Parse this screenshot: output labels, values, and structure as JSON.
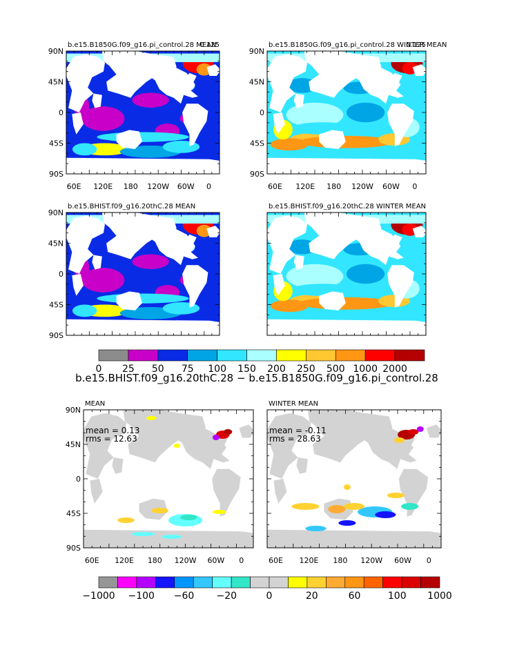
{
  "chart_data": {
    "type": "heatmap",
    "colors": {
      "land": "#ffffff",
      "land_diff": "#d3d3d3",
      "frame": "#000000"
    },
    "panels": [
      {
        "id": "p1",
        "title": "b.e15.B1850G.f09_g16.pi_control.28 MEAN",
        "corner_value": "0.125",
        "yticks": [
          "90N",
          "45N",
          "0",
          "45S",
          "90S"
        ],
        "xticks": [
          "60E",
          "120E",
          "180",
          "120W",
          "60W",
          "0"
        ],
        "dominant_class": 2
      },
      {
        "id": "p2",
        "title": "b.e15.B1850G.f09_g16.pi_control.28 WINTER MEAN",
        "corner_value": "0.125",
        "yticks": [
          "90N",
          "45N",
          "0",
          "45S",
          "90S"
        ],
        "xticks": [
          "60E",
          "120E",
          "180",
          "120W",
          "60W",
          "0"
        ],
        "dominant_class": 4
      },
      {
        "id": "p3",
        "title": "b.e15.BHIST.f09_g16.20thC.28 MEAN",
        "yticks": [
          "90N",
          "45N",
          "0",
          "45S",
          "90S"
        ],
        "xticks": [],
        "dominant_class": 2
      },
      {
        "id": "p4",
        "title": "b.e15.BHIST.f09_g16.20thC.28 WINTER MEAN",
        "yticks": [],
        "xticks": [],
        "dominant_class": 4
      },
      {
        "id": "p5",
        "title": "MEAN",
        "stats": [
          "mean = 0.13",
          "rms = 12.63"
        ],
        "yticks": [
          "90N",
          "45N",
          "0",
          "45S",
          "90S"
        ],
        "xticks": [
          "60E",
          "120E",
          "180",
          "120W",
          "60W",
          "0"
        ]
      },
      {
        "id": "p6",
        "title": "WINTER MEAN",
        "stats": [
          "mean = -0.11",
          "rms = 28.63"
        ],
        "yticks": [],
        "xticks": [
          "60E",
          "120E",
          "180",
          "120W",
          "60W",
          "0"
        ]
      }
    ],
    "colorbar_top": {
      "labels": [
        "0",
        "25",
        "50",
        "75",
        "100",
        "150",
        "200",
        "250",
        "500",
        "1000",
        "2000"
      ],
      "colors": [
        "#8c8c8c",
        "#c800c8",
        "#0a2be6",
        "#00a5e6",
        "#32e6ff",
        "#aaffff",
        "#ffff00",
        "#ffc832",
        "#ff9614",
        "#ff0000",
        "#b40000"
      ]
    },
    "difference_title": "b.e15.BHIST.f09_g16.20thC.28 − b.e15.B1850G.f09_g16.pi_control.28",
    "colorbar_bottom": {
      "labels": [
        "−1000",
        "−100",
        "−60",
        "−20",
        "0",
        "20",
        "60",
        "100",
        "1000"
      ],
      "colors": [
        "#969696",
        "#ff00ff",
        "#b400ff",
        "#1414ff",
        "#0096ff",
        "#32c8ff",
        "#64ffff",
        "#32e6c8",
        "#d3d3d3",
        "#d3d3d3",
        "#ffff00",
        "#ffd232",
        "#ffaa32",
        "#ff9614",
        "#ff6400",
        "#ff0000",
        "#dc0000",
        "#b40000"
      ]
    }
  }
}
